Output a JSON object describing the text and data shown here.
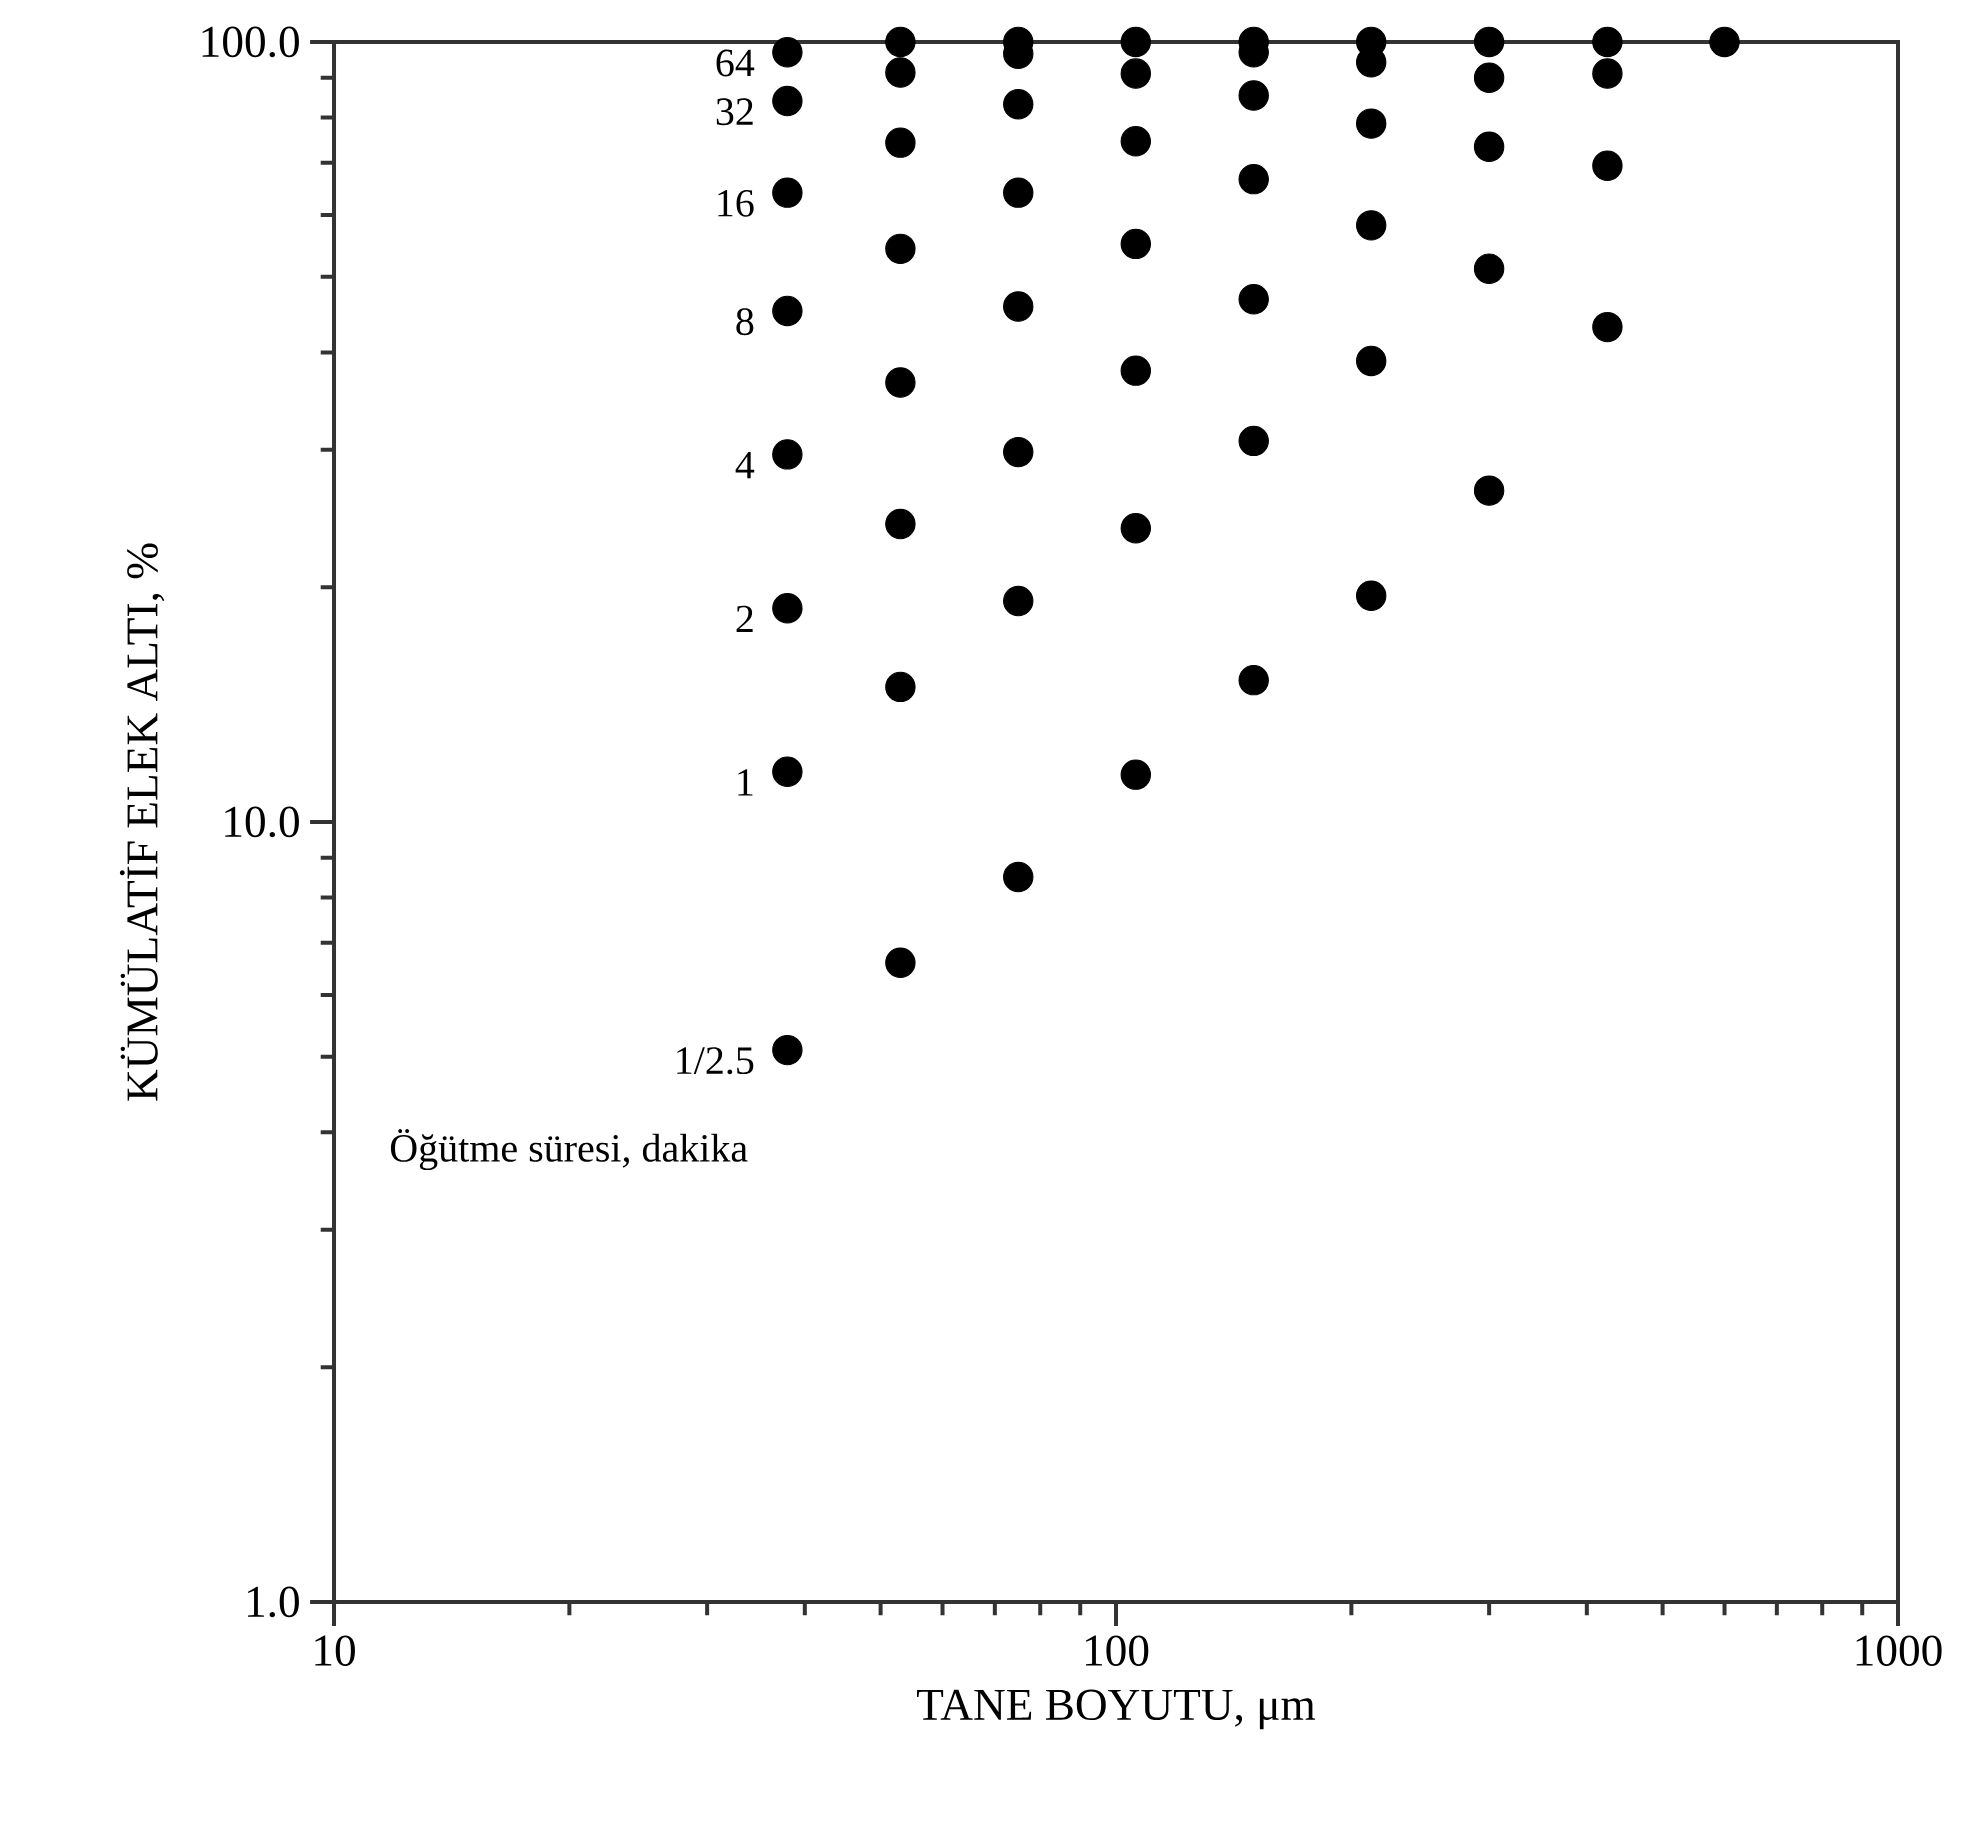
{
  "chart_data": {
    "type": "scatter",
    "xlabel": "TANE BOYUTU, μm",
    "ylabel": "KÜMÜLATİF ELEK ALTI, %",
    "x": [
      38,
      53,
      75,
      106,
      150,
      212,
      300,
      425,
      600
    ],
    "series": [
      {
        "name": "1/2.5",
        "color": "#000000",
        "values": [
          5.1,
          6.6,
          8.5,
          11.5,
          15.2,
          19.5,
          26.6,
          43.1,
          100
        ]
      },
      {
        "name": "1",
        "color": "#000000",
        "values": [
          11.6,
          14.9,
          19.2,
          23.8,
          30.8,
          39.0,
          51.2,
          69.4,
          null
        ]
      },
      {
        "name": "2",
        "color": "#000000",
        "values": [
          18.8,
          24.1,
          29.8,
          37.9,
          46.8,
          58.2,
          73.4,
          91.1,
          null
        ]
      },
      {
        "name": "4",
        "color": "#000000",
        "values": [
          29.6,
          36.6,
          45.8,
          55.1,
          66.7,
          78.6,
          90.0,
          100,
          null
        ]
      },
      {
        "name": "8",
        "color": "#000000",
        "values": [
          45.2,
          54.3,
          64.1,
          74.6,
          85.4,
          94.2,
          100,
          null,
          null
        ]
      },
      {
        "name": "16",
        "color": "#000000",
        "values": [
          64.1,
          74.3,
          83.2,
          91.1,
          97.0,
          100,
          null,
          null,
          null
        ]
      },
      {
        "name": "32",
        "color": "#000000",
        "values": [
          84.0,
          91.4,
          96.6,
          100,
          100,
          null,
          null,
          null,
          null
        ]
      },
      {
        "name": "64",
        "color": "#000000",
        "values": [
          97.0,
          100,
          100,
          null,
          null,
          null,
          null,
          null,
          null
        ]
      }
    ],
    "annotations": [
      "Öğütme süresi, dakika"
    ],
    "xlim": [
      10,
      1000
    ],
    "ylim": [
      1,
      100
    ],
    "xticks": [
      10,
      100,
      1000
    ],
    "yticks": [
      {
        "value": 1,
        "label": "1.0"
      },
      {
        "value": 10,
        "label": "10.0"
      },
      {
        "value": 100,
        "label": "100.0"
      }
    ],
    "log": "xy",
    "grid": false,
    "marker": "circle"
  }
}
